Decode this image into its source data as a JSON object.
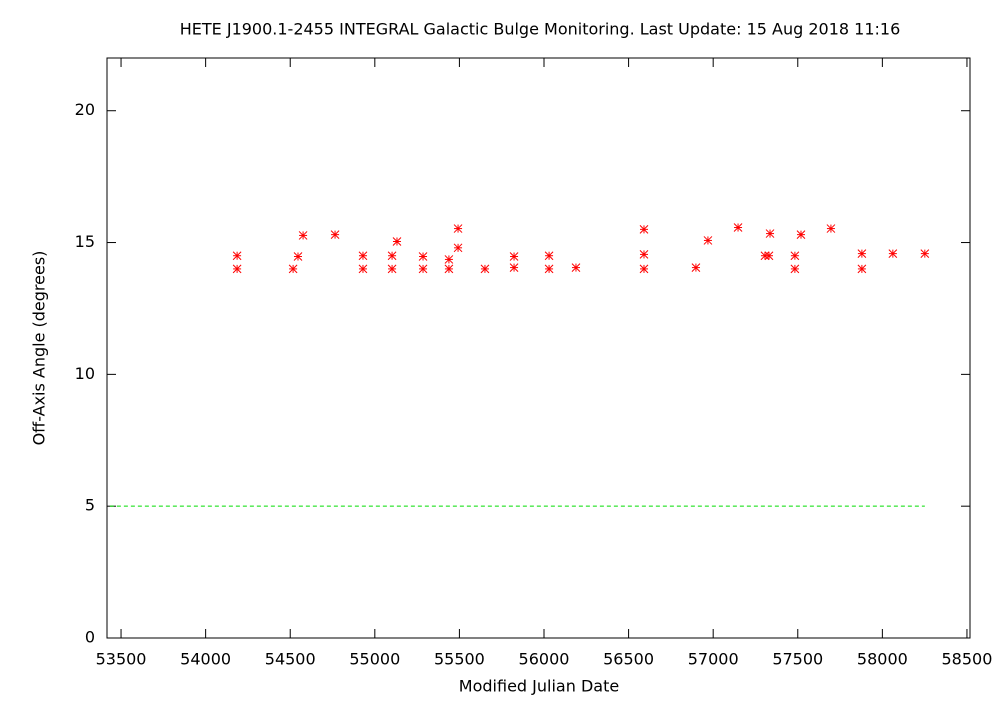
{
  "chart_data": {
    "type": "scatter",
    "title": "HETE J1900.1-2455   INTEGRAL Galactic Bulge Monitoring.  Last Update: 15 Aug 2018 11:16",
    "x_label": "Modified Julian Date",
    "y_label": "Off-Axis Angle (degrees)",
    "xlim": [
      53417,
      58518
    ],
    "ylim": [
      0,
      22
    ],
    "xticks": [
      53500,
      54000,
      54500,
      55000,
      55500,
      56000,
      56500,
      57000,
      57500,
      58000,
      58500
    ],
    "yticks": [
      0,
      5,
      10,
      15,
      20
    ],
    "series": [
      {
        "color": "#ff0000",
        "marker": "asterisk",
        "x": [
          54186,
          54186,
          54517,
          54546,
          54576,
          54765,
          54930,
          54930,
          55102,
          55102,
          55131,
          55285,
          55285,
          55438,
          55438,
          55492,
          55492,
          55651,
          55823,
          55823,
          56030,
          56030,
          56189,
          56591,
          56591,
          56591,
          56898,
          56969,
          57147,
          57306,
          57330,
          57336,
          57483,
          57483,
          57519,
          57696,
          57879,
          57879,
          58062,
          58251
        ],
        "values": [
          14.5,
          14.0,
          14.0,
          14.47,
          15.27,
          15.3,
          14.5,
          14.0,
          14.5,
          14.0,
          15.04,
          14.47,
          14.0,
          14.0,
          14.36,
          14.8,
          15.53,
          14.0,
          14.47,
          14.05,
          14.5,
          14.0,
          14.05,
          15.5,
          14.55,
          14.0,
          14.05,
          15.08,
          15.57,
          14.5,
          14.5,
          15.34,
          14.5,
          14.0,
          15.3,
          15.53,
          14.58,
          14.0,
          14.58,
          14.58
        ]
      },
      {
        "color": "#00dd00",
        "line_style": "dashed",
        "x": [
          53434,
          58251
        ],
        "values": [
          5,
          5
        ]
      }
    ]
  }
}
